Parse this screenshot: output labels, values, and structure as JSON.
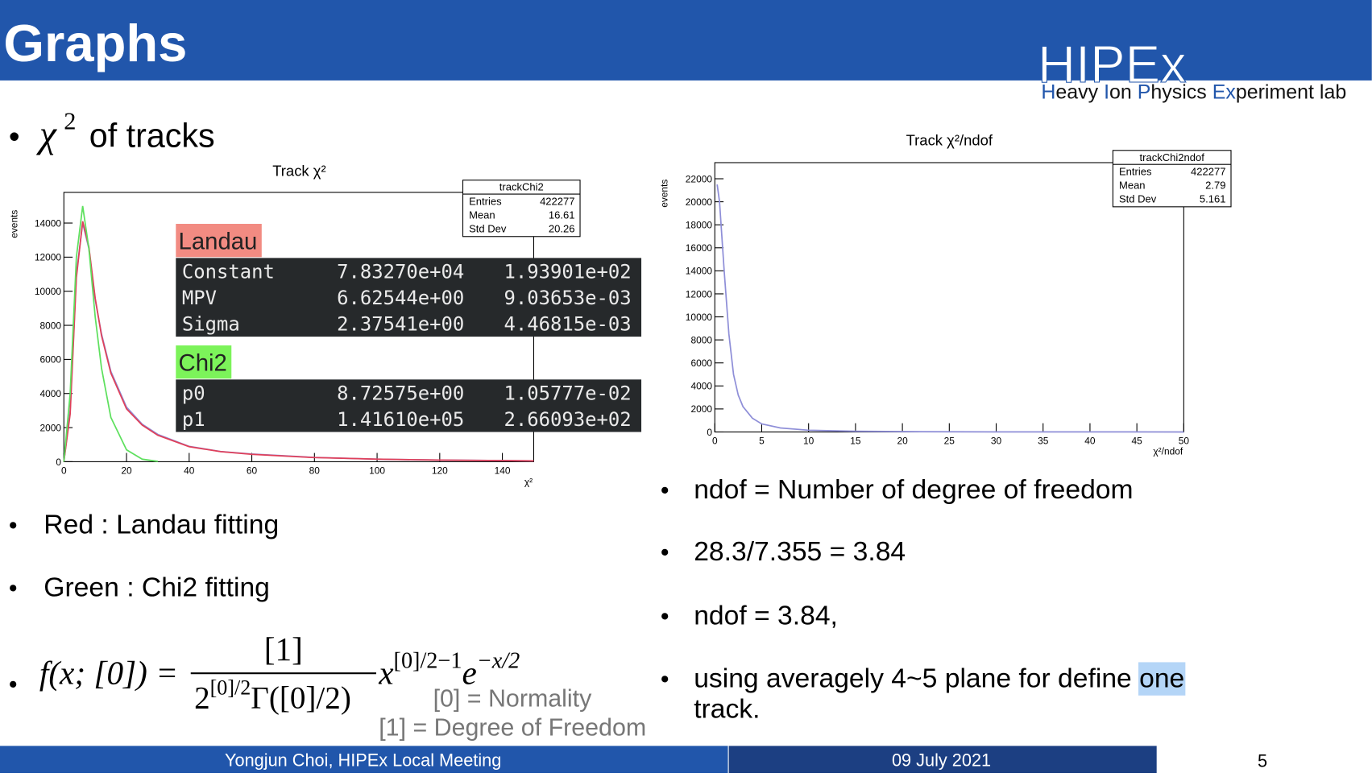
{
  "header": {
    "title": "Graphs",
    "logo": "HIPEx",
    "lab": [
      "H",
      "eavy ",
      "I",
      "on ",
      "P",
      "hysics ",
      "Ex",
      "periment lab"
    ]
  },
  "heading": {
    "symbol": "χ",
    "sup": "2",
    "text": "of tracks"
  },
  "left_bullets": [
    "Red : Landau fitting",
    "Green : Chi2 fitting"
  ],
  "formula": {
    "lhs": "f(x; [0]) =",
    "numerator": "[1]",
    "denominator": {
      "base": "2",
      "exp": "[0]/2",
      "rest": "Γ([0]/2)"
    },
    "factor1": {
      "base": "x",
      "exp": "[0]/2−1"
    },
    "factor2": {
      "base": "e",
      "exp": "−x/2"
    },
    "notes": [
      "[0] = Normality",
      "[1] = Degree of Freedom"
    ]
  },
  "right_bullets": [
    "ndof = Number of degree of freedom",
    "28.3/7.355 = 3.84",
    "ndof = 3.84,"
  ],
  "last_bullet": {
    "before": "using averagely 4~5 plane for define ",
    "highlight": "one",
    "after": "track."
  },
  "footer": {
    "left": "Yongjun Choi, HIPEx Local Meeting",
    "date": "09 July 2021",
    "page": "5"
  },
  "chart_data": [
    {
      "type": "line",
      "title": "Track χ²",
      "ylabel": "events",
      "xlabel": "χ²",
      "xlim": [
        0,
        150
      ],
      "ylim": [
        0,
        15800
      ],
      "xticks": [
        0,
        20,
        40,
        60,
        80,
        100,
        120,
        140
      ],
      "yticks": [
        0,
        2000,
        4000,
        6000,
        8000,
        10000,
        12000,
        14000
      ],
      "x": [
        0,
        2,
        4,
        6,
        8,
        10,
        12,
        15,
        20,
        25,
        30,
        40,
        50,
        60,
        80,
        100,
        120,
        150
      ],
      "series": [
        {
          "color": "#8f8fd8",
          "values": [
            0,
            3000,
            11000,
            14000,
            12500,
            9500,
            7500,
            5300,
            3200,
            2200,
            1600,
            900,
            600,
            450,
            250,
            150,
            100,
            50
          ]
        },
        {
          "color": "#e0405a",
          "values": [
            0,
            2800,
            10800,
            14100,
            12600,
            9600,
            7400,
            5200,
            3100,
            2150,
            1550,
            880,
            590,
            430,
            240,
            150,
            100,
            50
          ]
        },
        {
          "color": "#5ee05e",
          "values": [
            0,
            4000,
            12000,
            15000,
            12500,
            8500,
            5500,
            2600,
            700,
            150,
            20,
            null,
            null,
            null,
            null,
            null,
            null,
            null
          ]
        }
      ],
      "stats": {
        "name": "trackChi2",
        "rows": [
          [
            "Entries",
            "422277"
          ],
          [
            "Mean",
            "16.61"
          ],
          [
            "Std Dev",
            "20.26"
          ]
        ]
      },
      "fits": [
        {
          "name": "Landau",
          "color": "#f28b82",
          "rows": [
            [
              "Constant",
              "7.83270e+04",
              "1.93901e+02"
            ],
            [
              "MPV",
              "6.62544e+00",
              "9.03653e-03"
            ],
            [
              "Sigma",
              "2.37541e+00",
              "4.46815e-03"
            ]
          ]
        },
        {
          "name": "Chi2",
          "color": "#7cf35a",
          "rows": [
            [
              "p0",
              "8.72575e+00",
              "1.05777e-02"
            ],
            [
              "p1",
              "1.41610e+05",
              "2.66093e+02"
            ]
          ]
        }
      ]
    },
    {
      "type": "line",
      "title": "Track χ²/ndof",
      "ylabel": "events",
      "xlabel": "χ²/ndof",
      "xlim": [
        0,
        50
      ],
      "ylim": [
        0,
        23400
      ],
      "xticks": [
        0,
        5,
        10,
        15,
        20,
        25,
        30,
        35,
        40,
        45,
        50
      ],
      "yticks": [
        0,
        2000,
        4000,
        6000,
        8000,
        10000,
        12000,
        14000,
        16000,
        18000,
        20000,
        22000
      ],
      "x": [
        0.25,
        0.5,
        1,
        1.5,
        2,
        2.5,
        3,
        4,
        5,
        7,
        10,
        15,
        20,
        30,
        40,
        50
      ],
      "series": [
        {
          "color": "#8f8fd8",
          "values": [
            21500,
            20000,
            14000,
            8500,
            5000,
            3200,
            2200,
            1200,
            700,
            350,
            150,
            60,
            30,
            10,
            5,
            0
          ]
        }
      ],
      "stats": {
        "name": "trackChi2ndof",
        "rows": [
          [
            "Entries",
            "422277"
          ],
          [
            "Mean",
            "2.79"
          ],
          [
            "Std Dev",
            "5.161"
          ]
        ]
      }
    }
  ]
}
